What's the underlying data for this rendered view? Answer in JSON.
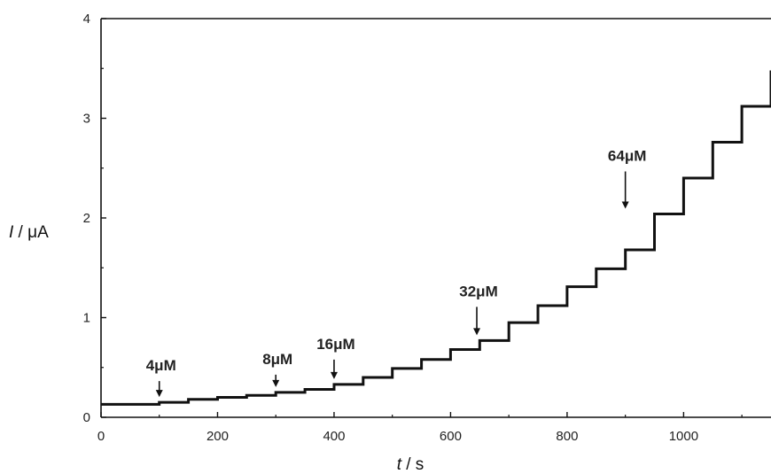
{
  "chart_data": {
    "type": "line",
    "title": "",
    "xlabel_var": "t",
    "xlabel_unit": " / s",
    "ylabel_var": "I",
    "ylabel_unit": " / μA",
    "xlim": [
      0,
      1150
    ],
    "ylim": [
      0,
      4
    ],
    "xticks": [
      0,
      200,
      400,
      600,
      800,
      1000
    ],
    "yticks": [
      0,
      1,
      2,
      3,
      4
    ],
    "grid": false,
    "series": [
      {
        "x": [
          0,
          100,
          150,
          200,
          250,
          300,
          350,
          400,
          450,
          500,
          550,
          600,
          650,
          700,
          750,
          800,
          850,
          900,
          950,
          1000,
          1050,
          1100,
          1150
        ],
        "y": [
          0.13,
          0.15,
          0.18,
          0.2,
          0.22,
          0.25,
          0.28,
          0.33,
          0.4,
          0.49,
          0.58,
          0.68,
          0.77,
          0.95,
          1.12,
          1.31,
          1.49,
          1.68,
          2.04,
          2.4,
          2.76,
          3.12,
          3.48
        ]
      }
    ],
    "annotations": [
      {
        "text": "4μM",
        "x": 100,
        "y": 0.15
      },
      {
        "text": "8μM",
        "x": 300,
        "y": 0.25
      },
      {
        "text": "16μM",
        "x": 400,
        "y": 0.33
      },
      {
        "text": "32μM",
        "x": 645,
        "y": 0.77
      },
      {
        "text": "64μM",
        "x": 900,
        "y": 2.04
      }
    ]
  }
}
